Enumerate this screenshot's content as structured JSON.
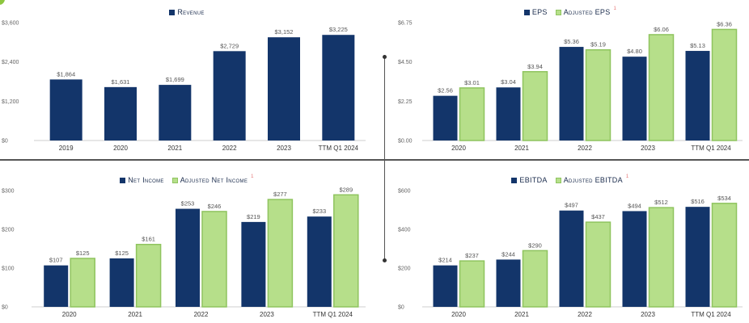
{
  "colors": {
    "primary": "#13356a",
    "secondary": "#b6df8a",
    "secondary_border": "#8fc45f",
    "footnote": "#e57373"
  },
  "footnote_marker": "1",
  "chart_data": [
    {
      "id": "revenue",
      "type": "bar",
      "title": "",
      "categories": [
        "2019",
        "2020",
        "2021",
        "2022",
        "2023",
        "TTM Q1 2024"
      ],
      "series": [
        {
          "name": "Revenue",
          "values": [
            1864,
            1631,
            1699,
            2729,
            3152,
            3225
          ],
          "labels": [
            "$1,864",
            "$1,631",
            "$1,699",
            "$2,729",
            "$3,152",
            "$3,225"
          ],
          "color": "#13356a"
        }
      ],
      "y_ticks": [
        "$0",
        "$1,200",
        "$2,400",
        "$3,600"
      ],
      "ylim": [
        0,
        3600
      ],
      "legend_position": "top-center",
      "grid": false
    },
    {
      "id": "eps",
      "type": "bar",
      "title": "",
      "categories": [
        "2020",
        "2021",
        "2022",
        "2023",
        "TTM Q1 2024"
      ],
      "series": [
        {
          "name": "EPS",
          "values": [
            2.56,
            3.04,
            5.36,
            4.8,
            5.13
          ],
          "labels": [
            "$2.56",
            "$3.04",
            "$5.36",
            "$4.80",
            "$5.13"
          ],
          "color": "#13356a"
        },
        {
          "name": "Adjusted EPS",
          "footnote": "1",
          "values": [
            3.01,
            3.94,
            5.19,
            6.06,
            6.36
          ],
          "labels": [
            "$3.01",
            "$3.94",
            "$5.19",
            "$6.06",
            "$6.36"
          ],
          "color": "#b6df8a"
        }
      ],
      "y_ticks": [
        "$0.00",
        "$2.25",
        "$4.50",
        "$6.75"
      ],
      "ylim": [
        0,
        6.75
      ],
      "legend_position": "top-center",
      "grid": false
    },
    {
      "id": "net_income",
      "type": "bar",
      "title": "",
      "categories": [
        "2020",
        "2021",
        "2022",
        "2023",
        "TTM Q1 2024"
      ],
      "series": [
        {
          "name": "Net Income",
          "values": [
            107,
            125,
            253,
            219,
            233
          ],
          "labels": [
            "$107",
            "$125",
            "$253",
            "$219",
            "$233"
          ],
          "color": "#13356a"
        },
        {
          "name": "Adjusted Net Income",
          "footnote": "1",
          "values": [
            125,
            161,
            246,
            277,
            289
          ],
          "labels": [
            "$125",
            "$161",
            "$246",
            "$277",
            "$289"
          ],
          "color": "#b6df8a"
        }
      ],
      "y_ticks": [
        "$0",
        "$100",
        "$200",
        "$300"
      ],
      "ylim": [
        0,
        300
      ],
      "legend_position": "top-center",
      "grid": false
    },
    {
      "id": "ebitda",
      "type": "bar",
      "title": "",
      "categories": [
        "2020",
        "2021",
        "2022",
        "2023",
        "TTM Q1 2024"
      ],
      "series": [
        {
          "name": "EBITDA",
          "values": [
            214,
            244,
            497,
            494,
            516
          ],
          "labels": [
            "$214",
            "$244",
            "$497",
            "$494",
            "$516"
          ],
          "color": "#13356a"
        },
        {
          "name": "Adjusted EBITDA",
          "footnote": "1",
          "values": [
            237,
            290,
            437,
            512,
            534
          ],
          "labels": [
            "$237",
            "$290",
            "$437",
            "$512",
            "$534"
          ],
          "color": "#b6df8a"
        }
      ],
      "y_ticks": [
        "$0",
        "$200",
        "$400",
        "$600"
      ],
      "ylim": [
        0,
        600
      ],
      "legend_position": "top-center",
      "grid": false
    }
  ]
}
